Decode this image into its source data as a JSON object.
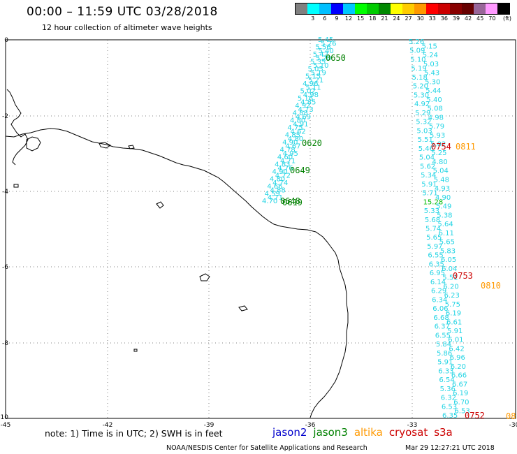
{
  "header": {
    "title": "00:00 – 11:59 UTC 03/28/2018",
    "subtitle": "12 hour collection of altimeter wave heights"
  },
  "color_scale": {
    "unit": "(ft)",
    "swatches": [
      "#808080",
      "#00ffff",
      "#00bfff",
      "#0000ff",
      "#00c8ff",
      "#00ff00",
      "#00cc00",
      "#008800",
      "#ffff00",
      "#ffcc00",
      "#ff9900",
      "#ff0000",
      "#cc0000",
      "#880000",
      "#660000",
      "#996699",
      "#ff99ff",
      "#000000"
    ],
    "labels": [
      "3",
      "6",
      "9",
      "12",
      "15",
      "18",
      "21",
      "24",
      "27",
      "30",
      "33",
      "36",
      "39",
      "42",
      "45",
      "70"
    ]
  },
  "axes": {
    "x_ticks": [
      "-45",
      "-42",
      "-39",
      "-36",
      "-33",
      "-30"
    ],
    "y_ticks": [
      "0",
      "-2",
      "-4",
      "-6",
      "-8",
      "-10"
    ]
  },
  "tracks": {
    "track1_values": [
      "5.45",
      "5.26",
      "5.56",
      "5.40",
      "5.42",
      "5.20",
      "5.35",
      "5.10",
      "5.05",
      "5.19",
      "5.15",
      "5.21",
      "4.96",
      "5.11",
      "5.02",
      "4.98",
      "5.16",
      "4.85",
      "4.92",
      "4.73",
      "4.88",
      "4.69",
      "4.80",
      "4.91",
      "4.75",
      "4.62",
      "4.85",
      "4.80",
      "4.90",
      "4.67",
      "4.78",
      "4.95",
      "4.60",
      "4.71",
      "4.83",
      "4.76",
      "4.90",
      "4.72",
      "4.80",
      "4.74",
      "4.66",
      "4.88",
      "4.59",
      "4.71",
      "4.70"
    ],
    "track2_values": [
      "5.26",
      "5.15",
      "5.09",
      "5.24",
      "5.10",
      "5.03",
      "5.19",
      "5.43",
      "5.18",
      "5.30",
      "5.20",
      "5.44",
      "5.30",
      "5.40",
      "4.92",
      "5.08",
      "5.29",
      "4.98",
      "5.32",
      "5.79",
      "5.03",
      "5.93",
      "5.51",
      "5.02",
      "5.46",
      "5.25",
      "5.04",
      "4.80",
      "5.62",
      "5.04",
      "5.34",
      "5.48",
      "5.91",
      "4.93",
      "5.71",
      "4.90",
      "15.28",
      "5.49",
      "5.33",
      "5.38",
      "5.68",
      "5.64",
      "5.74",
      "6.11",
      "5.65",
      "5.65",
      "5.97",
      "5.83",
      "6.55",
      "6.05",
      "6.35",
      "6.04",
      "6.95",
      "5.51",
      "6.14",
      "6.20",
      "6.29",
      "6.23",
      "6.34",
      "5.75",
      "6.06",
      "6.19",
      "6.68",
      "6.61",
      "6.37",
      "5.91",
      "6.55",
      "6.01",
      "5.84",
      "6.42",
      "5.86",
      "6.96",
      "5.91",
      "6.20",
      "6.33",
      "6.66",
      "6.54",
      "6.67",
      "5.36",
      "6.19",
      "6.32",
      "6.70",
      "6.53",
      "6.53",
      "6.35"
    ],
    "track2_col_x": [],
    "pass_times": [
      {
        "text": "0650",
        "color": "#008000"
      },
      {
        "text": "0620",
        "color": "#008000"
      },
      {
        "text": "0649",
        "color": "#008000"
      },
      {
        "text": "0648",
        "color": "#008000"
      },
      {
        "text": "0619",
        "color": "#008000"
      },
      {
        "text": "0754",
        "color": "#cc0000"
      },
      {
        "text": "0811",
        "color": "#ff9900"
      },
      {
        "text": "0753",
        "color": "#cc0000"
      },
      {
        "text": "0810",
        "color": "#ff9900"
      },
      {
        "text": "0752",
        "color": "#cc0000"
      },
      {
        "text": "08",
        "color": "#ff9900"
      }
    ]
  },
  "footer": {
    "note": "note: 1) Time is in UTC; 2) SWH is in feet",
    "legend": [
      {
        "name": "jason2",
        "color": "#0000cc"
      },
      {
        "name": "jason3",
        "color": "#008000"
      },
      {
        "name": "altika",
        "color": "#ff9900"
      },
      {
        "name": "cryosat",
        "color": "#cc0000"
      },
      {
        "name": "s3a",
        "color": "#cc0000"
      }
    ],
    "credit": "NOAA/NESDIS Center for Satellite Applications and Research",
    "timestamp": "Mar 29 12:27:21 UTC 2018"
  }
}
